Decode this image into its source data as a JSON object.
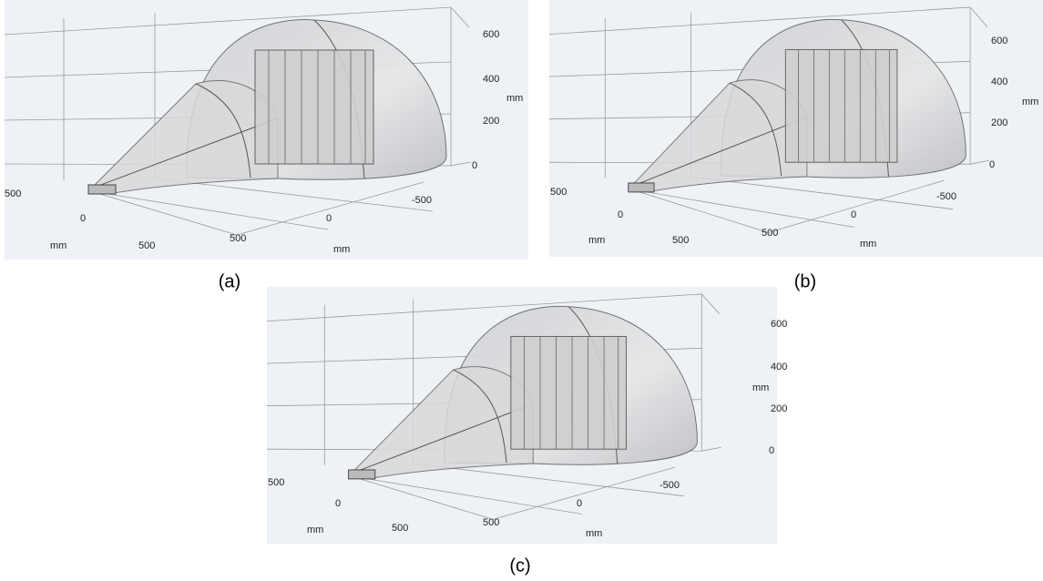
{
  "panels": [
    {
      "caption": "(a)",
      "labels": [
        "600",
        "400",
        "mm",
        "200",
        "0",
        "500",
        "0",
        "mm",
        "500",
        "500",
        "0",
        "-500",
        "mm"
      ]
    },
    {
      "caption": "(b)",
      "labels": [
        "600",
        "400",
        "mm",
        "200",
        "0",
        "500",
        "0",
        "mm",
        "500",
        "500",
        "0",
        "-500",
        "mm"
      ]
    },
    {
      "caption": "(c)",
      "labels": [
        "600",
        "400",
        "mm",
        "200",
        "0",
        "500",
        "0",
        "mm",
        "500",
        "500",
        "0",
        "-500",
        "mm"
      ]
    }
  ]
}
